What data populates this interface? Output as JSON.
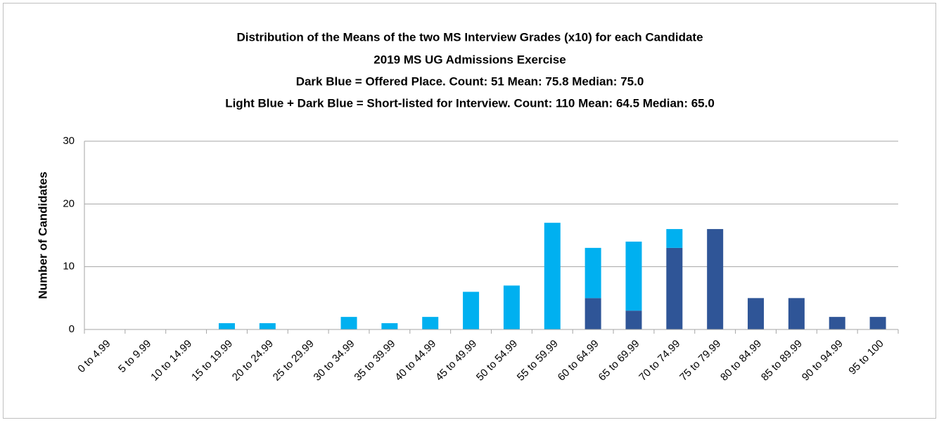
{
  "chart_data": {
    "type": "stacked_bar",
    "title": [
      "Distribution of the Means of  the  two MS Interview Grades (x10) for each Candidate",
      "2019  MS UG Admissions Exercise",
      "Dark Blue = Offered Place.  Count: 51   Mean: 75.8   Median: 75.0",
      "Light Blue + Dark Blue = Short-listed for Interview.   Count: 110   Mean:  64.5   Median: 65.0"
    ],
    "y_label": "Number of Candidates",
    "categories": [
      "0 to 4.99",
      "5 to 9.99",
      "10 to 14.99",
      "15 to 19.99",
      "20 to 24.99",
      "25 to 29.99",
      "30 to 34.99",
      "35 to 39.99",
      "40 to 44.99",
      "45 to 49.99",
      "50 to 54.99",
      "55 to 59.99",
      "60 to 64.99",
      "65 to 69.99",
      "70 to 74.99",
      "75 to 79.99",
      "80 to 84.99",
      "85 to 89.99",
      "90 to 94.99",
      "95 to 100"
    ],
    "series": [
      {
        "color": "#2f5597",
        "values": [
          0,
          0,
          0,
          0,
          0,
          0,
          0,
          0,
          0,
          0,
          0,
          0,
          5,
          3,
          13,
          16,
          5,
          5,
          2,
          2
        ]
      },
      {
        "color": "#00b0f0",
        "values": [
          0,
          0,
          0,
          1,
          1,
          0,
          2,
          1,
          2,
          6,
          7,
          17,
          8,
          11,
          3,
          0,
          0,
          0,
          0,
          0
        ]
      }
    ],
    "ylim": [
      0,
      30
    ],
    "yticks": [
      0,
      10,
      20,
      30
    ],
    "grid": true
  }
}
